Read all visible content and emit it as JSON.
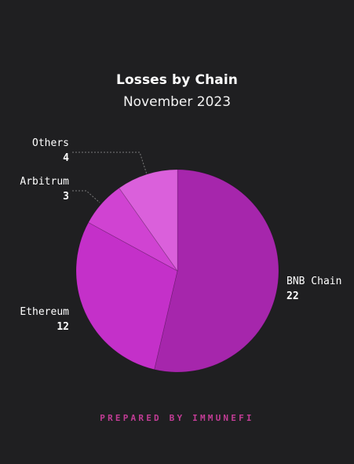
{
  "chart_data": {
    "type": "pie",
    "title": "Losses by Chain",
    "subtitle": "November 2023",
    "slices": [
      {
        "label": "BNB Chain",
        "value": 22,
        "value_label": "22",
        "color": "#a626ac"
      },
      {
        "label": "Ethereum",
        "value": 12,
        "value_label": "12",
        "color": "#c430c9"
      },
      {
        "label": "Arbitrum",
        "value": 3,
        "value_label": "3",
        "color": "#d043d2"
      },
      {
        "label": "Others",
        "value": 4,
        "value_label": "4",
        "color": "#da60db"
      }
    ]
  },
  "footer": {
    "text": "PREPARED BY IMMUNEFI"
  },
  "colors": {
    "background": "#1f1f21",
    "text": "#ffffff",
    "footer": "#c13c95",
    "leader": "#7a7a7a"
  }
}
